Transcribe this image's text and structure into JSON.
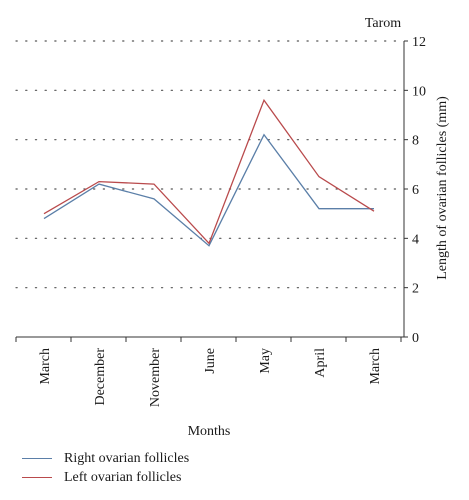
{
  "chart_data": {
    "type": "line",
    "title": "Tarom",
    "xlabel": "Months",
    "ylabel": "Length of ovarian follicles (mm)",
    "categories": [
      "March",
      "December",
      "November",
      "June",
      "May",
      "April",
      "March"
    ],
    "ylim": [
      0,
      12
    ],
    "yticks": [
      0,
      2,
      4,
      6,
      8,
      10,
      12
    ],
    "y_axis_side": "right",
    "grid": "dotted horizontal",
    "legend_position": "bottom-left",
    "series": [
      {
        "name": "Right ovarian follicles",
        "color": "#5b7fa8",
        "values": [
          4.8,
          6.2,
          5.6,
          3.7,
          8.2,
          5.2,
          5.2
        ]
      },
      {
        "name": "Left ovarian follicles",
        "color": "#b94a4c",
        "values": [
          5.0,
          6.3,
          6.2,
          3.8,
          9.6,
          6.5,
          5.1
        ]
      }
    ]
  }
}
